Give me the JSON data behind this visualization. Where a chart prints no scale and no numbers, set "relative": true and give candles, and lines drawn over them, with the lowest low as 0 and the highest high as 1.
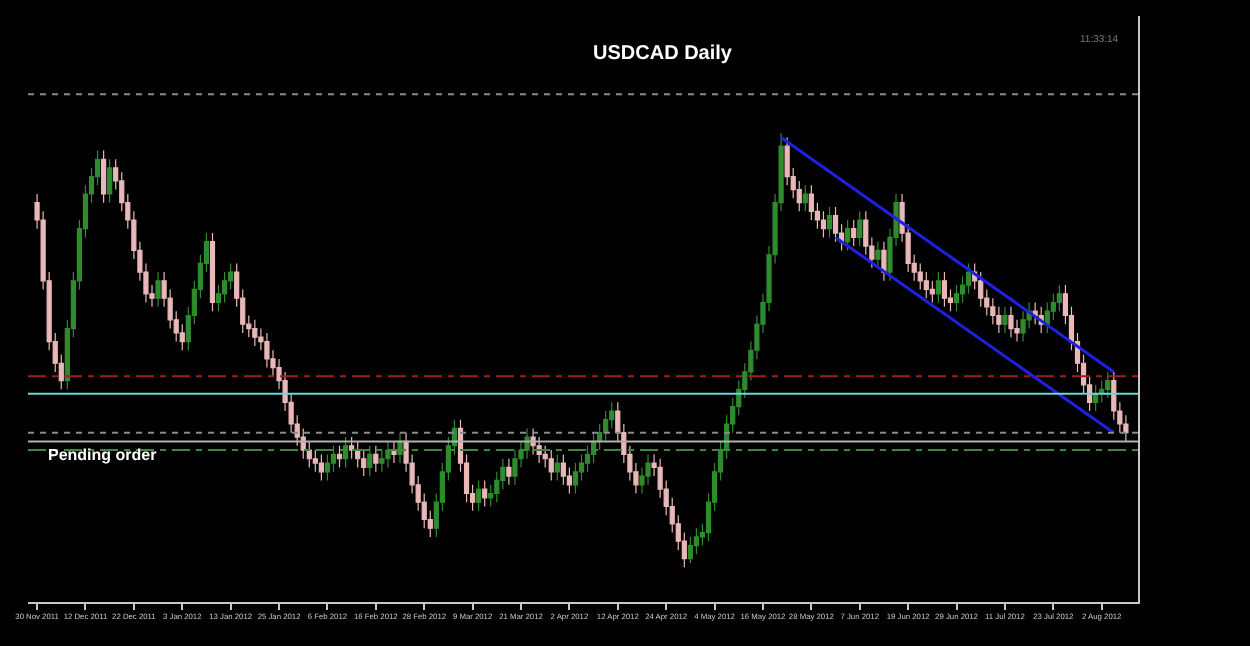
{
  "chart_data": {
    "type": "candlestick",
    "title": "USDCAD Daily",
    "relative": true,
    "annotations": [
      "Pending order",
      "11:33:14"
    ],
    "categories": [
      "30 Nov 2011",
      null,
      null,
      null,
      null,
      null,
      null,
      null,
      "12 Dec 2011",
      null,
      null,
      null,
      null,
      null,
      null,
      null,
      "22 Dec 2011",
      null,
      null,
      null,
      null,
      null,
      null,
      null,
      "3 Jan 2012",
      null,
      null,
      null,
      null,
      null,
      null,
      null,
      "13 Jan 2012",
      null,
      null,
      null,
      null,
      null,
      null,
      null,
      "25 Jan 2012",
      null,
      null,
      null,
      null,
      null,
      null,
      null,
      "6 Feb 2012",
      null,
      null,
      null,
      null,
      null,
      null,
      null,
      "16 Feb 2012",
      null,
      null,
      null,
      null,
      null,
      null,
      null,
      "28 Feb 2012",
      null,
      null,
      null,
      null,
      null,
      null,
      null,
      "9 Mar 2012",
      null,
      null,
      null,
      null,
      null,
      null,
      null,
      "21 Mar 2012",
      null,
      null,
      null,
      null,
      null,
      null,
      null,
      "2 Apr 2012",
      null,
      null,
      null,
      null,
      null,
      null,
      null,
      "12 Apr 2012",
      null,
      null,
      null,
      null,
      null,
      null,
      null,
      "24 Apr 2012",
      null,
      null,
      null,
      null,
      null,
      null,
      null,
      "4 May 2012",
      null,
      null,
      null,
      null,
      null,
      null,
      null,
      "16 May 2012",
      null,
      null,
      null,
      null,
      null,
      null,
      null,
      "28 May 2012",
      null,
      null,
      null,
      null,
      null,
      null,
      null,
      "7 Jun 2012",
      null,
      null,
      null,
      null,
      null,
      null,
      null,
      "19 Jun 2012",
      null,
      null,
      null,
      null,
      null,
      null,
      null,
      "29 Jun 2012",
      null,
      null,
      null,
      null,
      null,
      null,
      null,
      "11 Jul 2012",
      null,
      null,
      null,
      null,
      null,
      null,
      null,
      "23 Jul 2012",
      null,
      null,
      null,
      null,
      null,
      null,
      null,
      "2 Aug 2012",
      null,
      null,
      null,
      null
    ],
    "ohlc": [
      [
        0.84,
        0.86,
        0.78,
        0.8
      ],
      [
        0.8,
        0.82,
        0.64,
        0.66
      ],
      [
        0.66,
        0.68,
        0.5,
        0.52
      ],
      [
        0.52,
        0.54,
        0.45,
        0.47
      ],
      [
        0.47,
        0.49,
        0.41,
        0.43
      ],
      [
        0.43,
        0.57,
        0.41,
        0.55
      ],
      [
        0.55,
        0.68,
        0.53,
        0.66
      ],
      [
        0.66,
        0.8,
        0.64,
        0.78
      ],
      [
        0.78,
        0.88,
        0.76,
        0.86
      ],
      [
        0.86,
        0.92,
        0.84,
        0.9
      ],
      [
        0.9,
        0.96,
        0.88,
        0.94
      ],
      [
        0.94,
        0.96,
        0.84,
        0.86
      ],
      [
        0.86,
        0.94,
        0.84,
        0.92
      ],
      [
        0.92,
        0.94,
        0.87,
        0.89
      ],
      [
        0.89,
        0.91,
        0.82,
        0.84
      ],
      [
        0.84,
        0.86,
        0.78,
        0.8
      ],
      [
        0.8,
        0.82,
        0.71,
        0.73
      ],
      [
        0.73,
        0.75,
        0.66,
        0.68
      ],
      [
        0.68,
        0.7,
        0.61,
        0.63
      ],
      [
        0.63,
        0.65,
        0.6,
        0.62
      ],
      [
        0.62,
        0.68,
        0.6,
        0.66
      ],
      [
        0.66,
        0.68,
        0.6,
        0.62
      ],
      [
        0.62,
        0.64,
        0.55,
        0.57
      ],
      [
        0.57,
        0.59,
        0.52,
        0.54
      ],
      [
        0.54,
        0.56,
        0.5,
        0.52
      ],
      [
        0.52,
        0.6,
        0.5,
        0.58
      ],
      [
        0.58,
        0.66,
        0.56,
        0.64
      ],
      [
        0.64,
        0.72,
        0.62,
        0.7
      ],
      [
        0.7,
        0.77,
        0.68,
        0.75
      ],
      [
        0.75,
        0.77,
        0.59,
        0.61
      ],
      [
        0.61,
        0.65,
        0.59,
        0.63
      ],
      [
        0.63,
        0.68,
        0.61,
        0.66
      ],
      [
        0.66,
        0.7,
        0.64,
        0.68
      ],
      [
        0.68,
        0.7,
        0.6,
        0.62
      ],
      [
        0.62,
        0.64,
        0.54,
        0.56
      ],
      [
        0.56,
        0.58,
        0.53,
        0.55
      ],
      [
        0.55,
        0.57,
        0.51,
        0.53
      ],
      [
        0.53,
        0.55,
        0.5,
        0.52
      ],
      [
        0.52,
        0.54,
        0.46,
        0.48
      ],
      [
        0.48,
        0.5,
        0.44,
        0.46
      ],
      [
        0.46,
        0.48,
        0.41,
        0.43
      ],
      [
        0.43,
        0.45,
        0.36,
        0.38
      ],
      [
        0.38,
        0.4,
        0.31,
        0.33
      ],
      [
        0.33,
        0.35,
        0.28,
        0.3
      ],
      [
        0.3,
        0.32,
        0.25,
        0.27
      ],
      [
        0.27,
        0.29,
        0.23,
        0.25
      ],
      [
        0.25,
        0.27,
        0.22,
        0.24
      ],
      [
        0.24,
        0.26,
        0.2,
        0.22
      ],
      [
        0.22,
        0.26,
        0.2,
        0.24
      ],
      [
        0.24,
        0.28,
        0.22,
        0.26
      ],
      [
        0.26,
        0.28,
        0.23,
        0.25
      ],
      [
        0.25,
        0.3,
        0.23,
        0.28
      ],
      [
        0.28,
        0.3,
        0.25,
        0.27
      ],
      [
        0.27,
        0.29,
        0.23,
        0.25
      ],
      [
        0.25,
        0.27,
        0.21,
        0.23
      ],
      [
        0.23,
        0.28,
        0.21,
        0.26
      ],
      [
        0.26,
        0.28,
        0.22,
        0.24
      ],
      [
        0.24,
        0.27,
        0.22,
        0.25
      ],
      [
        0.25,
        0.29,
        0.23,
        0.27
      ],
      [
        0.27,
        0.29,
        0.24,
        0.26
      ],
      [
        0.26,
        0.31,
        0.24,
        0.29
      ],
      [
        0.29,
        0.31,
        0.22,
        0.24
      ],
      [
        0.24,
        0.26,
        0.17,
        0.19
      ],
      [
        0.19,
        0.21,
        0.13,
        0.15
      ],
      [
        0.15,
        0.17,
        0.09,
        0.11
      ],
      [
        0.11,
        0.13,
        0.07,
        0.09
      ],
      [
        0.09,
        0.17,
        0.07,
        0.15
      ],
      [
        0.15,
        0.24,
        0.13,
        0.22
      ],
      [
        0.22,
        0.3,
        0.2,
        0.28
      ],
      [
        0.28,
        0.34,
        0.26,
        0.32
      ],
      [
        0.32,
        0.34,
        0.22,
        0.24
      ],
      [
        0.24,
        0.26,
        0.15,
        0.17
      ],
      [
        0.17,
        0.19,
        0.13,
        0.15
      ],
      [
        0.15,
        0.2,
        0.13,
        0.18
      ],
      [
        0.18,
        0.2,
        0.14,
        0.16
      ],
      [
        0.16,
        0.19,
        0.14,
        0.17
      ],
      [
        0.17,
        0.22,
        0.15,
        0.2
      ],
      [
        0.2,
        0.25,
        0.18,
        0.23
      ],
      [
        0.23,
        0.25,
        0.19,
        0.21
      ],
      [
        0.21,
        0.27,
        0.19,
        0.25
      ],
      [
        0.25,
        0.29,
        0.23,
        0.27
      ],
      [
        0.27,
        0.32,
        0.25,
        0.3
      ],
      [
        0.3,
        0.32,
        0.26,
        0.28
      ],
      [
        0.28,
        0.3,
        0.24,
        0.26
      ],
      [
        0.26,
        0.28,
        0.23,
        0.25
      ],
      [
        0.25,
        0.27,
        0.2,
        0.22
      ],
      [
        0.22,
        0.26,
        0.2,
        0.24
      ],
      [
        0.24,
        0.26,
        0.19,
        0.21
      ],
      [
        0.21,
        0.23,
        0.17,
        0.19
      ],
      [
        0.19,
        0.24,
        0.17,
        0.22
      ],
      [
        0.22,
        0.26,
        0.2,
        0.24
      ],
      [
        0.24,
        0.28,
        0.22,
        0.26
      ],
      [
        0.26,
        0.31,
        0.24,
        0.29
      ],
      [
        0.29,
        0.33,
        0.27,
        0.31
      ],
      [
        0.31,
        0.36,
        0.29,
        0.34
      ],
      [
        0.34,
        0.38,
        0.32,
        0.36
      ],
      [
        0.36,
        0.38,
        0.29,
        0.31
      ],
      [
        0.31,
        0.33,
        0.24,
        0.26
      ],
      [
        0.26,
        0.28,
        0.2,
        0.22
      ],
      [
        0.22,
        0.24,
        0.17,
        0.19
      ],
      [
        0.19,
        0.23,
        0.17,
        0.21
      ],
      [
        0.21,
        0.26,
        0.19,
        0.24
      ],
      [
        0.24,
        0.26,
        0.21,
        0.23
      ],
      [
        0.23,
        0.25,
        0.16,
        0.18
      ],
      [
        0.18,
        0.2,
        0.12,
        0.14
      ],
      [
        0.14,
        0.16,
        0.08,
        0.1
      ],
      [
        0.1,
        0.12,
        0.04,
        0.06
      ],
      [
        0.06,
        0.08,
        0,
        0.02
      ],
      [
        0.02,
        0.07,
        0.01,
        0.05
      ],
      [
        0.05,
        0.09,
        0.03,
        0.07
      ],
      [
        0.07,
        0.1,
        0.05,
        0.08
      ],
      [
        0.08,
        0.17,
        0.06,
        0.15
      ],
      [
        0.15,
        0.24,
        0.13,
        0.22
      ],
      [
        0.22,
        0.29,
        0.2,
        0.27
      ],
      [
        0.27,
        0.35,
        0.25,
        0.33
      ],
      [
        0.33,
        0.39,
        0.31,
        0.37
      ],
      [
        0.37,
        0.43,
        0.35,
        0.41
      ],
      [
        0.41,
        0.47,
        0.39,
        0.45
      ],
      [
        0.45,
        0.52,
        0.43,
        0.5
      ],
      [
        0.5,
        0.58,
        0.48,
        0.56
      ],
      [
        0.56,
        0.63,
        0.54,
        0.61
      ],
      [
        0.61,
        0.74,
        0.59,
        0.72
      ],
      [
        0.72,
        0.86,
        0.7,
        0.84
      ],
      [
        0.84,
        1,
        0.82,
        0.97
      ],
      [
        0.97,
        0.99,
        0.88,
        0.9
      ],
      [
        0.9,
        0.92,
        0.85,
        0.87
      ],
      [
        0.87,
        0.89,
        0.82,
        0.84
      ],
      [
        0.84,
        0.88,
        0.82,
        0.86
      ],
      [
        0.86,
        0.88,
        0.8,
        0.82
      ],
      [
        0.82,
        0.84,
        0.78,
        0.8
      ],
      [
        0.8,
        0.82,
        0.76,
        0.78
      ],
      [
        0.78,
        0.83,
        0.76,
        0.81
      ],
      [
        0.81,
        0.83,
        0.75,
        0.77
      ],
      [
        0.77,
        0.79,
        0.73,
        0.75
      ],
      [
        0.75,
        0.8,
        0.73,
        0.78
      ],
      [
        0.78,
        0.8,
        0.74,
        0.76
      ],
      [
        0.76,
        0.82,
        0.74,
        0.8
      ],
      [
        0.8,
        0.82,
        0.72,
        0.74
      ],
      [
        0.74,
        0.76,
        0.69,
        0.71
      ],
      [
        0.71,
        0.75,
        0.69,
        0.73
      ],
      [
        0.73,
        0.75,
        0.66,
        0.68
      ],
      [
        0.68,
        0.78,
        0.66,
        0.76
      ],
      [
        0.76,
        0.86,
        0.74,
        0.84
      ],
      [
        0.84,
        0.86,
        0.75,
        0.77
      ],
      [
        0.77,
        0.79,
        0.68,
        0.7
      ],
      [
        0.7,
        0.72,
        0.66,
        0.68
      ],
      [
        0.68,
        0.7,
        0.64,
        0.66
      ],
      [
        0.66,
        0.68,
        0.62,
        0.64
      ],
      [
        0.64,
        0.66,
        0.61,
        0.63
      ],
      [
        0.63,
        0.68,
        0.61,
        0.66
      ],
      [
        0.66,
        0.68,
        0.6,
        0.62
      ],
      [
        0.62,
        0.64,
        0.59,
        0.61
      ],
      [
        0.61,
        0.65,
        0.59,
        0.63
      ],
      [
        0.63,
        0.67,
        0.61,
        0.65
      ],
      [
        0.65,
        0.7,
        0.63,
        0.68
      ],
      [
        0.68,
        0.7,
        0.64,
        0.66
      ],
      [
        0.66,
        0.68,
        0.6,
        0.62
      ],
      [
        0.62,
        0.64,
        0.58,
        0.6
      ],
      [
        0.6,
        0.62,
        0.56,
        0.58
      ],
      [
        0.58,
        0.6,
        0.54,
        0.56
      ],
      [
        0.56,
        0.6,
        0.54,
        0.58
      ],
      [
        0.58,
        0.6,
        0.53,
        0.55
      ],
      [
        0.55,
        0.57,
        0.52,
        0.54
      ],
      [
        0.54,
        0.59,
        0.52,
        0.57
      ],
      [
        0.57,
        0.61,
        0.55,
        0.59
      ],
      [
        0.59,
        0.61,
        0.56,
        0.58
      ],
      [
        0.58,
        0.6,
        0.54,
        0.56
      ],
      [
        0.56,
        0.61,
        0.54,
        0.59
      ],
      [
        0.59,
        0.63,
        0.57,
        0.61
      ],
      [
        0.61,
        0.65,
        0.59,
        0.63
      ],
      [
        0.63,
        0.65,
        0.56,
        0.58
      ],
      [
        0.58,
        0.6,
        0.5,
        0.52
      ],
      [
        0.52,
        0.54,
        0.45,
        0.47
      ],
      [
        0.47,
        0.49,
        0.4,
        0.42
      ],
      [
        0.42,
        0.44,
        0.36,
        0.38
      ],
      [
        0.38,
        0.42,
        0.36,
        0.4
      ],
      [
        0.4,
        0.43,
        0.38,
        0.41
      ],
      [
        0.41,
        0.45,
        0.39,
        0.43
      ],
      [
        0.43,
        0.45,
        0.34,
        0.36
      ],
      [
        0.36,
        0.38,
        0.31,
        0.33
      ],
      [
        0.33,
        0.35,
        0.29,
        0.31
      ]
    ],
    "series": [
      {
        "type": "line",
        "color": "#2020e0",
        "values": [
          null,
          null,
          null,
          null,
          null,
          null,
          null,
          null,
          null,
          null,
          null,
          null,
          null,
          null,
          null,
          null,
          null,
          null,
          null,
          null,
          null,
          null,
          null,
          null,
          null,
          null,
          null,
          null,
          null,
          null,
          null,
          null,
          null,
          null,
          null,
          null,
          null,
          null,
          null,
          null,
          null,
          null,
          null,
          null,
          null,
          null,
          null,
          null,
          null,
          null,
          null,
          null,
          null,
          null,
          null,
          null,
          null,
          null,
          null,
          null,
          null,
          null,
          null,
          null,
          null,
          null,
          null,
          null,
          null,
          null,
          null,
          null,
          null,
          null,
          null,
          null,
          null,
          null,
          null,
          null,
          null,
          null,
          null,
          null,
          null,
          null,
          null,
          null,
          null,
          null,
          null,
          null,
          null,
          null,
          null,
          null,
          null,
          null,
          null,
          null,
          null,
          null,
          null,
          null,
          null,
          null,
          null,
          null,
          null,
          null,
          null,
          null,
          null,
          null,
          null,
          null,
          null,
          null,
          null,
          null,
          null,
          null,
          null,
          0.99,
          null,
          null,
          null,
          null,
          null,
          null,
          null,
          null,
          null,
          null,
          null,
          null,
          null,
          null,
          null,
          null,
          null,
          null,
          null,
          null,
          null,
          null,
          null,
          null,
          null,
          null,
          null,
          null,
          null,
          null,
          null,
          null,
          null,
          null,
          null,
          null,
          null,
          null,
          null,
          null,
          null,
          null,
          null,
          null,
          null,
          null,
          null,
          null,
          null,
          null,
          null,
          null,
          null,
          null,
          0.45,
          null,
          null
        ]
      },
      {
        "type": "line",
        "color": "#2020e0",
        "values": [
          null,
          null,
          null,
          null,
          null,
          null,
          null,
          null,
          null,
          null,
          null,
          null,
          null,
          null,
          null,
          null,
          null,
          null,
          null,
          null,
          null,
          null,
          null,
          null,
          null,
          null,
          null,
          null,
          null,
          null,
          null,
          null,
          null,
          null,
          null,
          null,
          null,
          null,
          null,
          null,
          null,
          null,
          null,
          null,
          null,
          null,
          null,
          null,
          null,
          null,
          null,
          null,
          null,
          null,
          null,
          null,
          null,
          null,
          null,
          null,
          null,
          null,
          null,
          null,
          null,
          null,
          null,
          null,
          null,
          null,
          null,
          null,
          null,
          null,
          null,
          null,
          null,
          null,
          null,
          null,
          null,
          null,
          null,
          null,
          null,
          null,
          null,
          null,
          null,
          null,
          null,
          null,
          null,
          null,
          null,
          null,
          null,
          null,
          null,
          null,
          null,
          null,
          null,
          null,
          null,
          null,
          null,
          null,
          null,
          null,
          null,
          null,
          null,
          null,
          null,
          null,
          null,
          null,
          null,
          null,
          null,
          null,
          null,
          null,
          null,
          null,
          null,
          null,
          null,
          null,
          null,
          null,
          0.76,
          null,
          null,
          null,
          null,
          null,
          null,
          null,
          null,
          null,
          null,
          null,
          null,
          null,
          null,
          null,
          null,
          null,
          null,
          null,
          null,
          null,
          null,
          null,
          null,
          null,
          null,
          null,
          null,
          null,
          null,
          null,
          null,
          null,
          null,
          null,
          null,
          null,
          null,
          null,
          null,
          null,
          null,
          null,
          null,
          null,
          0.31,
          null,
          null
        ]
      }
    ],
    "ref_lines": [
      {
        "axis": "y",
        "value": 1.09,
        "color": "#8a8a8a",
        "line_style": "dotted"
      },
      {
        "axis": "y",
        "value": 0.44,
        "color": "#9a2020",
        "line_style": "dashed"
      },
      {
        "axis": "y",
        "value": 0.4,
        "color": "#6fd6d6",
        "line_style": "solid"
      },
      {
        "axis": "y",
        "value": 0.31,
        "color": "#8a8a8a",
        "line_style": "dotted"
      },
      {
        "axis": "y",
        "value": 0.29,
        "color": "#b0b0b0",
        "line_style": "solid"
      },
      {
        "axis": "y",
        "value": 0.27,
        "color": "#3a8a3a",
        "line_style": "dashed"
      }
    ]
  }
}
